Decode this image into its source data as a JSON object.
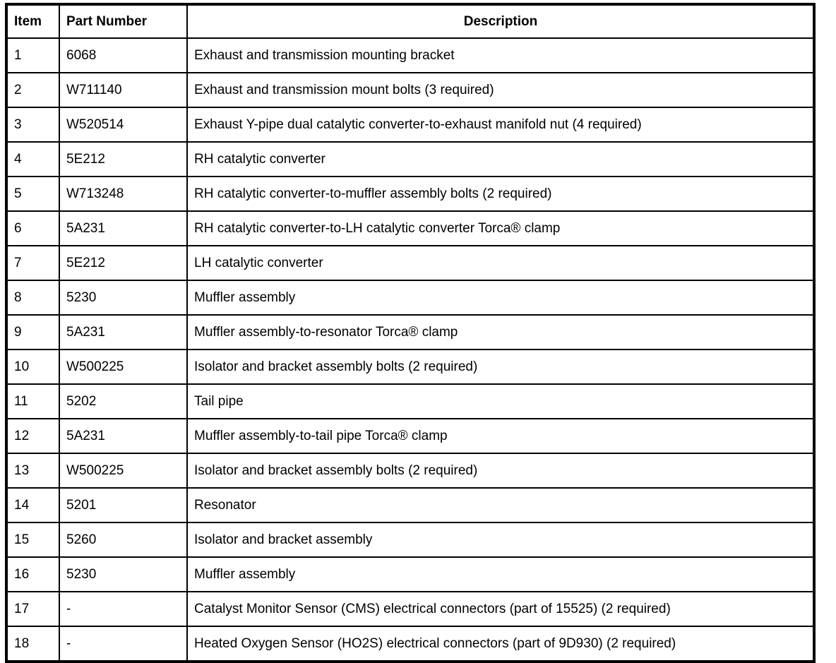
{
  "table": {
    "columns": [
      "Item",
      "Part Number",
      "Description"
    ],
    "rows": [
      [
        "1",
        "6068",
        "Exhaust and transmission mounting bracket"
      ],
      [
        "2",
        "W711140",
        "Exhaust and transmission mount bolts (3 required)"
      ],
      [
        "3",
        "W520514",
        "Exhaust Y-pipe dual catalytic converter-to-exhaust manifold nut (4 required)"
      ],
      [
        "4",
        "5E212",
        "RH catalytic converter"
      ],
      [
        "5",
        "W713248",
        "RH catalytic converter-to-muffler assembly bolts (2 required)"
      ],
      [
        "6",
        "5A231",
        "RH catalytic converter-to-LH catalytic converter Torca® clamp"
      ],
      [
        "7",
        "5E212",
        "LH catalytic converter"
      ],
      [
        "8",
        "5230",
        "Muffler assembly"
      ],
      [
        "9",
        "5A231",
        "Muffler assembly-to-resonator Torca® clamp"
      ],
      [
        "10",
        "W500225",
        "Isolator and bracket assembly bolts (2 required)"
      ],
      [
        "11",
        "5202",
        "Tail pipe"
      ],
      [
        "12",
        "5A231",
        "Muffler assembly-to-tail pipe Torca® clamp"
      ],
      [
        "13",
        "W500225",
        "Isolator and bracket assembly bolts (2 required)"
      ],
      [
        "14",
        "5201",
        "Resonator"
      ],
      [
        "15",
        "5260",
        "Isolator and bracket assembly"
      ],
      [
        "16",
        "5230",
        "Muffler assembly"
      ],
      [
        "17",
        "-",
        "Catalyst Monitor Sensor (CMS) electrical connectors (part of 15525) (2 required)"
      ],
      [
        "18",
        "-",
        "Heated Oxygen Sensor (HO2S) electrical connectors (part of 9D930) (2 required)"
      ]
    ]
  },
  "colors": {
    "border": "#000000",
    "text": "#000000",
    "background": "#ffffff"
  }
}
